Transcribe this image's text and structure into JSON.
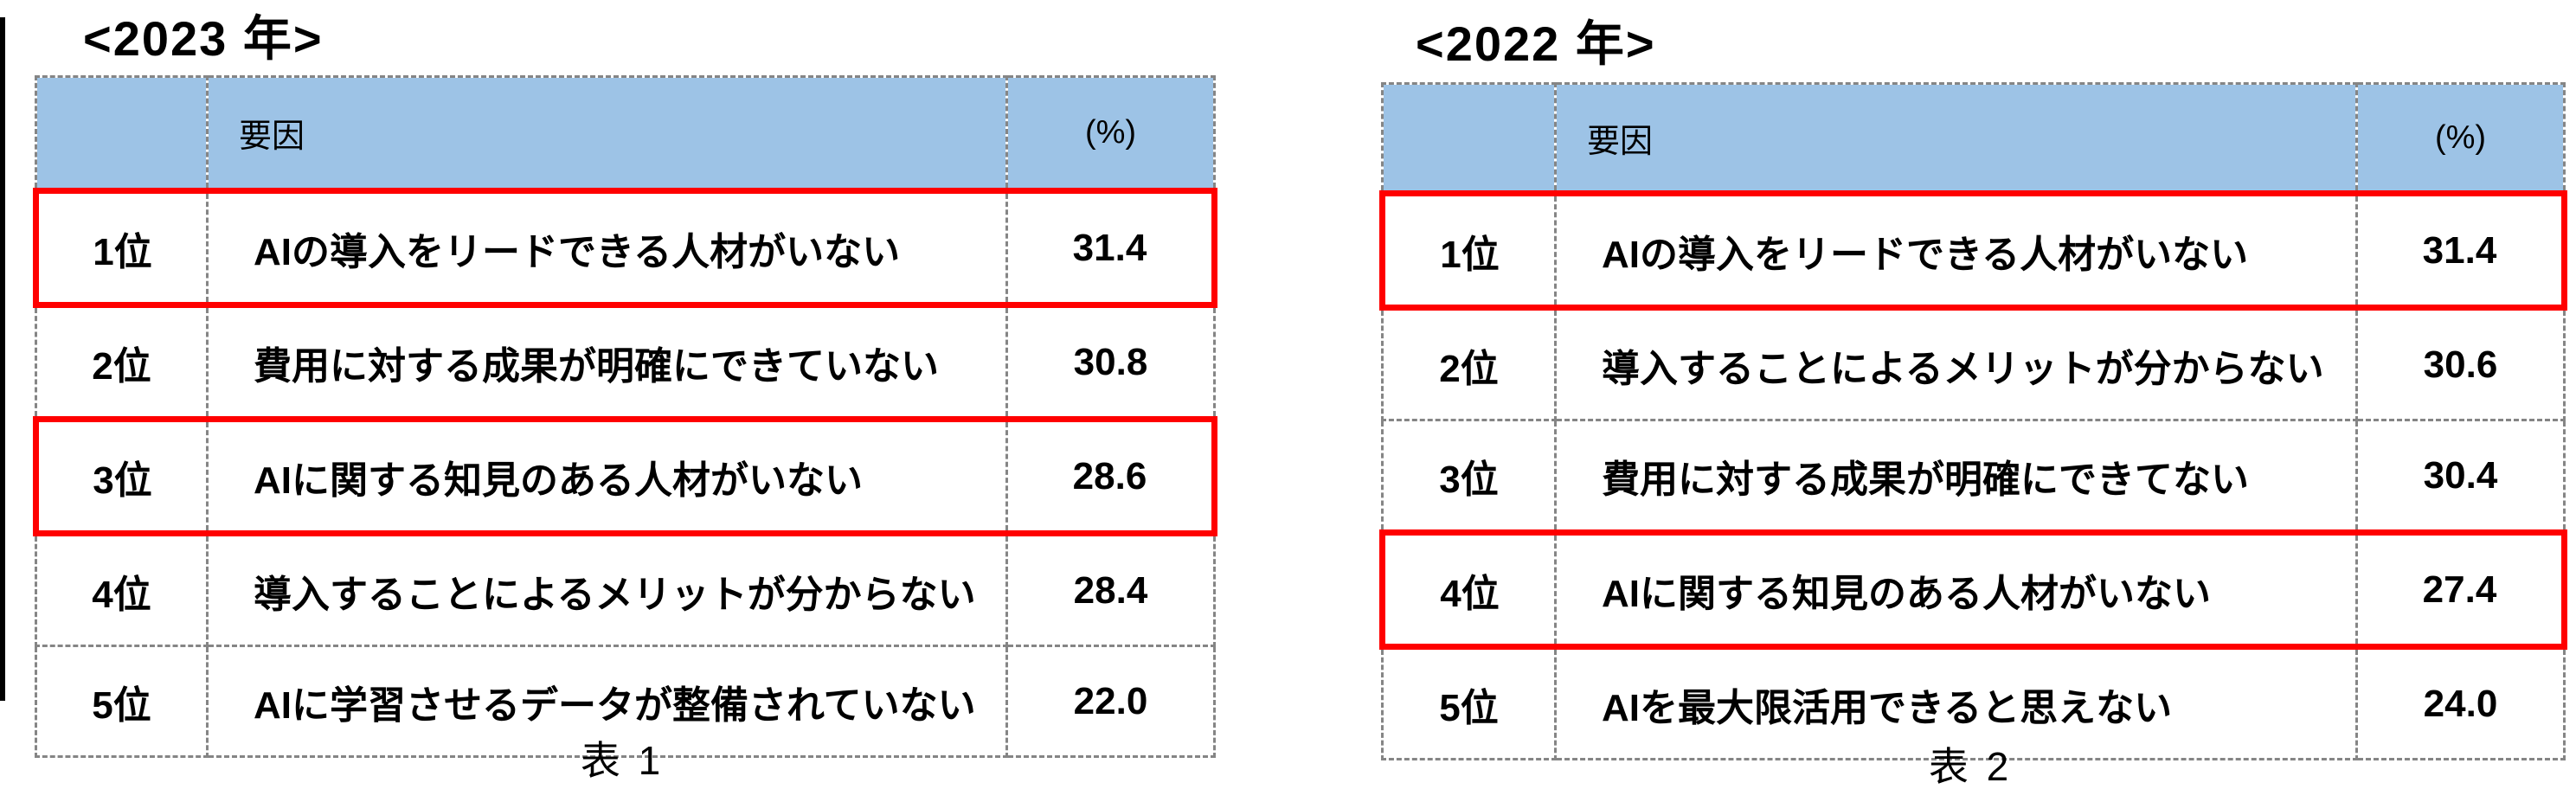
{
  "colors": {
    "header_bg": "#9DC3E6",
    "border_gray": "#858585",
    "highlight_red": "#FF0000",
    "text": "#000000"
  },
  "chart_data": [
    {
      "type": "table",
      "title": "<2023 年>",
      "caption": "表 1",
      "columns": [
        "",
        "要因",
        "(%)"
      ],
      "legend_note": "red-outline = highlighted rows",
      "rows": [
        {
          "rank": "1位",
          "factor": "AIの導入をリードできる人材がいない",
          "percent": "31.4",
          "highlight": true
        },
        {
          "rank": "2位",
          "factor": "費用に対する成果が明確にできていない",
          "percent": "30.8",
          "highlight": false
        },
        {
          "rank": "3位",
          "factor": "AIに関する知見のある人材がいない",
          "percent": "28.6",
          "highlight": true
        },
        {
          "rank": "4位",
          "factor": "導入することによるメリットが分からない",
          "percent": "28.4",
          "highlight": false
        },
        {
          "rank": "5位",
          "factor": "AIに学習させるデータが整備されていない",
          "percent": "22.0",
          "highlight": false
        }
      ]
    },
    {
      "type": "table",
      "title": "<2022 年>",
      "caption": "表 2",
      "columns": [
        "",
        "要因",
        "(%)"
      ],
      "legend_note": "red-outline = highlighted rows",
      "rows": [
        {
          "rank": "1位",
          "factor": "AIの導入をリードできる人材がいない",
          "percent": "31.4",
          "highlight": true
        },
        {
          "rank": "2位",
          "factor": "導入することによるメリットが分からない",
          "percent": "30.6",
          "highlight": false
        },
        {
          "rank": "3位",
          "factor": "費用に対する成果が明確にできてない",
          "percent": "30.4",
          "highlight": false
        },
        {
          "rank": "4位",
          "factor": "AIに関する知見のある人材がいない",
          "percent": "27.4",
          "highlight": true
        },
        {
          "rank": "5位",
          "factor": "AIを最大限活用できると思えない",
          "percent": "24.0",
          "highlight": false
        }
      ]
    }
  ]
}
